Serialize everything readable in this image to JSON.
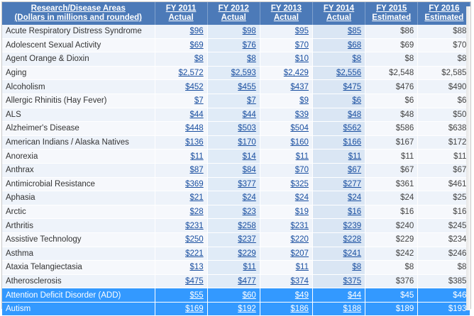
{
  "header": {
    "area_line1": "Research/Disease Areas",
    "area_line2": "(Dollars in millions and rounded)",
    "columns": [
      {
        "year": "FY 2011",
        "status": "Actual"
      },
      {
        "year": "FY 2012",
        "status": "Actual"
      },
      {
        "year": "FY 2013",
        "status": "Actual"
      },
      {
        "year": "FY 2014",
        "status": "Actual"
      },
      {
        "year": "FY 2015",
        "status": "Estimated"
      },
      {
        "year": "FY 2016",
        "status": "Estimated"
      }
    ]
  },
  "rows": [
    {
      "name": "Acute Respiratory Distress Syndrome",
      "values": [
        "$96",
        "$98",
        "$95",
        "$85",
        "$86",
        "$88"
      ]
    },
    {
      "name": "Adolescent Sexual Activity",
      "values": [
        "$69",
        "$76",
        "$70",
        "$68",
        "$69",
        "$70"
      ]
    },
    {
      "name": "Agent Orange & Dioxin",
      "values": [
        "$8",
        "$8",
        "$10",
        "$8",
        "$8",
        "$8"
      ]
    },
    {
      "name": "Aging",
      "values": [
        "$2,572",
        "$2,593",
        "$2,429",
        "$2,556",
        "$2,548",
        "$2,585"
      ]
    },
    {
      "name": "Alcoholism",
      "values": [
        "$452",
        "$455",
        "$437",
        "$475",
        "$476",
        "$490"
      ]
    },
    {
      "name": "Allergic Rhinitis (Hay Fever)",
      "values": [
        "$7",
        "$7",
        "$9",
        "$6",
        "$6",
        "$6"
      ]
    },
    {
      "name": "ALS",
      "values": [
        "$44",
        "$44",
        "$39",
        "$48",
        "$48",
        "$50"
      ]
    },
    {
      "name": "Alzheimer's Disease",
      "values": [
        "$448",
        "$503",
        "$504",
        "$562",
        "$586",
        "$638"
      ]
    },
    {
      "name": "American Indians / Alaska Natives",
      "values": [
        "$136",
        "$170",
        "$160",
        "$166",
        "$167",
        "$172"
      ]
    },
    {
      "name": "Anorexia",
      "values": [
        "$11",
        "$14",
        "$11",
        "$11",
        "$11",
        "$11"
      ]
    },
    {
      "name": "Anthrax",
      "values": [
        "$87",
        "$84",
        "$70",
        "$67",
        "$67",
        "$67"
      ]
    },
    {
      "name": "Antimicrobial Resistance",
      "values": [
        "$369",
        "$377",
        "$325",
        "$277",
        "$361",
        "$461"
      ]
    },
    {
      "name": "Aphasia",
      "values": [
        "$21",
        "$24",
        "$24",
        "$24",
        "$24",
        "$25"
      ]
    },
    {
      "name": "Arctic",
      "values": [
        "$28",
        "$23",
        "$19",
        "$16",
        "$16",
        "$16"
      ]
    },
    {
      "name": "Arthritis",
      "values": [
        "$231",
        "$258",
        "$231",
        "$239",
        "$240",
        "$245"
      ]
    },
    {
      "name": "Assistive Technology",
      "values": [
        "$250",
        "$237",
        "$220",
        "$228",
        "$229",
        "$234"
      ]
    },
    {
      "name": "Asthma",
      "values": [
        "$221",
        "$229",
        "$207",
        "$241",
        "$242",
        "$246"
      ]
    },
    {
      "name": "Ataxia Telangiectasia",
      "values": [
        "$13",
        "$11",
        "$11",
        "$8",
        "$8",
        "$8"
      ]
    },
    {
      "name": "Atherosclerosis",
      "values": [
        "$475",
        "$477",
        "$374",
        "$375",
        "$376",
        "$385"
      ]
    },
    {
      "name": "Attention Deficit Disorder (ADD)",
      "values": [
        "$55",
        "$60",
        "$49",
        "$44",
        "$45",
        "$46"
      ],
      "selected": true
    },
    {
      "name": "Autism",
      "values": [
        "$169",
        "$192",
        "$186",
        "$188",
        "$189",
        "$193"
      ],
      "selected": true
    }
  ]
}
